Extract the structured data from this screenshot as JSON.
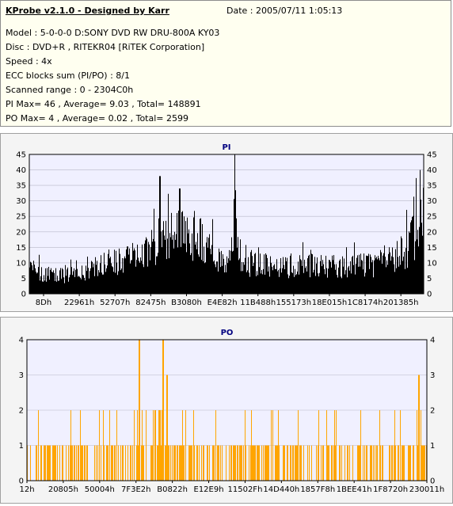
{
  "info": {
    "title": "KProbe v2.1.0 - Designed by Karr",
    "date": "Date : 2005/07/11 1:05:13",
    "lines": [
      "Model : 5-0-0-0 D:SONY    DVD RW DRU-800A  KY03",
      "Disc : DVD+R , RITEKR04 [RiTEK Corporation]",
      "Speed : 4x",
      "ECC blocks sum (PI/PO) : 8/1",
      "Scanned range : 0 - 2304C0h",
      "PI Max= 46 , Average= 9.03 , Total= 148891",
      "PO Max= 4 , Average= 0.02 , Total= 2599"
    ]
  },
  "colors": {
    "pi_series": "#000000",
    "po_series": "#ffa500",
    "title_color": "#000080",
    "plot_bg": "#f0f0ff"
  },
  "chart_data": [
    {
      "type": "bar",
      "title": "PI",
      "ylim": [
        0,
        45
      ],
      "yticks": [
        0,
        5,
        10,
        15,
        20,
        25,
        30,
        35,
        40,
        45
      ],
      "xtick_labels": [
        "8Dh",
        "22961h",
        "52707h",
        "82475h",
        "B3080h",
        "E4E82h",
        "11B488h",
        "155173h",
        "18E015h",
        "1C8174h",
        "201385h"
      ],
      "grid": true,
      "profile_x": [
        0,
        0.05,
        0.1,
        0.15,
        0.2,
        0.25,
        0.3,
        0.33,
        0.35,
        0.38,
        0.41,
        0.43,
        0.45,
        0.47,
        0.5,
        0.51,
        0.52,
        0.53,
        0.55,
        0.6,
        0.65,
        0.7,
        0.75,
        0.8,
        0.85,
        0.9,
        0.93,
        0.96,
        0.98,
        1.0
      ],
      "profile_avg": [
        8,
        6,
        6,
        8,
        10,
        12,
        14,
        17,
        19,
        20,
        19,
        17,
        15,
        12,
        10,
        12,
        26,
        14,
        10,
        9,
        9,
        9,
        9,
        9,
        9,
        10,
        12,
        15,
        20,
        28
      ],
      "peaks": [
        {
          "x": 0.52,
          "value": 46
        },
        {
          "x": 0.33,
          "value": 38
        },
        {
          "x": 0.38,
          "value": 34
        },
        {
          "x": 0.99,
          "value": 40
        }
      ]
    },
    {
      "type": "bar",
      "title": "PO",
      "ylim": [
        0,
        4
      ],
      "yticks": [
        0,
        1,
        2,
        3,
        4
      ],
      "xtick_labels": [
        "12h",
        "20805h",
        "50004h",
        "7F3E2h",
        "B0822h",
        "E12E9h",
        "11502Fh",
        "14D440h",
        "1857F8h",
        "1BEE41h",
        "1F8720h",
        "230011h"
      ],
      "grid": true,
      "max": 4,
      "peaks": [
        {
          "x": 0.28,
          "value": 4
        },
        {
          "x": 0.34,
          "value": 4
        },
        {
          "x": 0.98,
          "value": 3
        },
        {
          "x": 0.35,
          "value": 3
        }
      ]
    }
  ]
}
